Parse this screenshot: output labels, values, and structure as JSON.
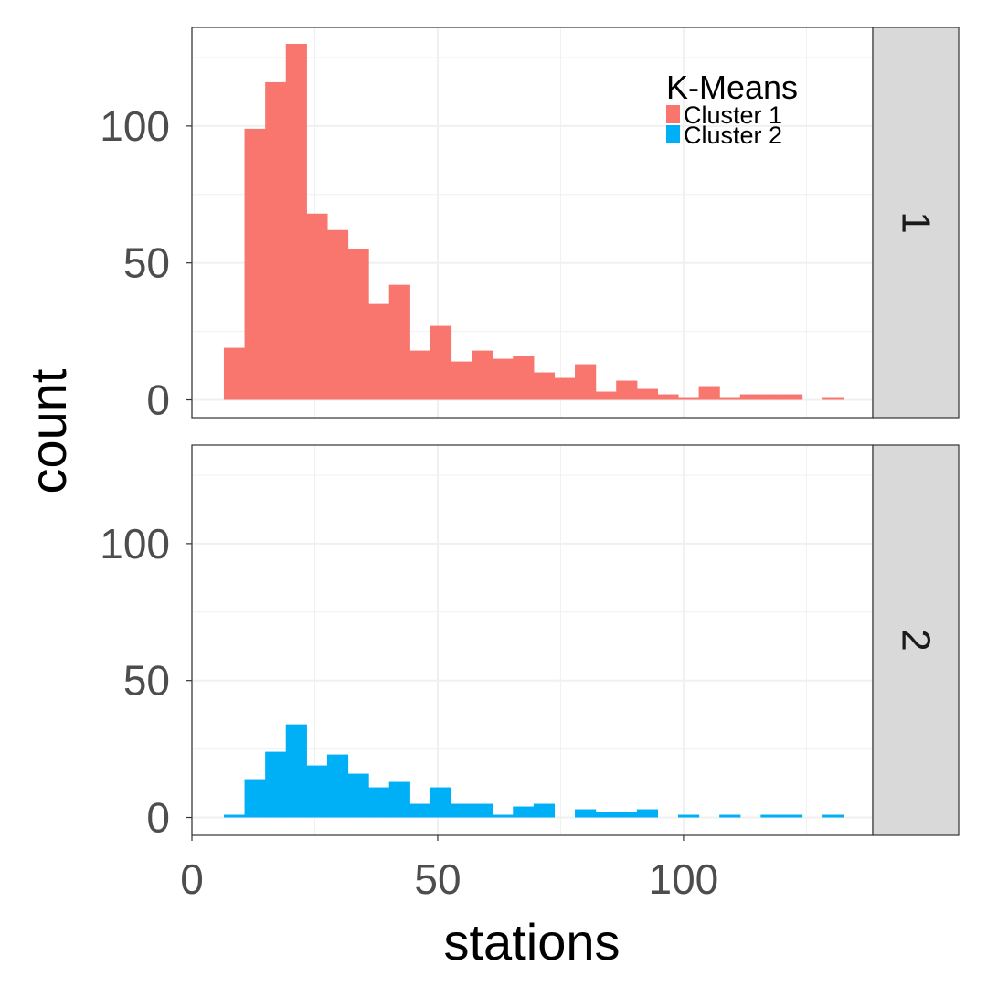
{
  "chart_data": {
    "type": "bar",
    "subtype": "faceted-histogram",
    "xlabel": "stations",
    "ylabel": "count",
    "xlim": [
      0,
      138.5
    ],
    "ylim": [
      -6.5,
      136
    ],
    "x_ticks": [
      0,
      50,
      100
    ],
    "y_ticks": [
      0,
      50,
      100
    ],
    "x_tick_labels": [
      "0",
      "50",
      "100"
    ],
    "y_tick_labels": [
      "0",
      "50",
      "100"
    ],
    "bin_start": 6.5,
    "bin_width": 4.2,
    "grid": true,
    "legend": {
      "title": "K-Means",
      "position": "top-right inside",
      "entries": [
        {
          "label": "Cluster 1",
          "color": "#F8766D"
        },
        {
          "label": "Cluster 2",
          "color": "#00B0F6"
        }
      ]
    },
    "facets": [
      {
        "strip_label": "1",
        "series": "Cluster 1",
        "color": "#F8766D",
        "counts": [
          19,
          99,
          116,
          130,
          68,
          62,
          55,
          35,
          42,
          18,
          27,
          14,
          18,
          15,
          16,
          10,
          8,
          13,
          3,
          7,
          4,
          2,
          1,
          5,
          1,
          2,
          2,
          2,
          0,
          1
        ]
      },
      {
        "strip_label": "2",
        "series": "Cluster 2",
        "color": "#00B0F6",
        "counts": [
          1,
          14,
          24,
          34,
          19,
          23,
          16,
          11,
          13,
          5,
          11,
          5,
          5,
          1,
          4,
          5,
          0,
          3,
          2,
          2,
          3,
          0,
          1,
          0,
          1,
          0,
          1,
          1,
          0,
          1
        ]
      }
    ]
  },
  "colors": {
    "grid": "#f0f0f0",
    "panel_border": "#333333",
    "strip_fill": "#d9d9d9"
  }
}
